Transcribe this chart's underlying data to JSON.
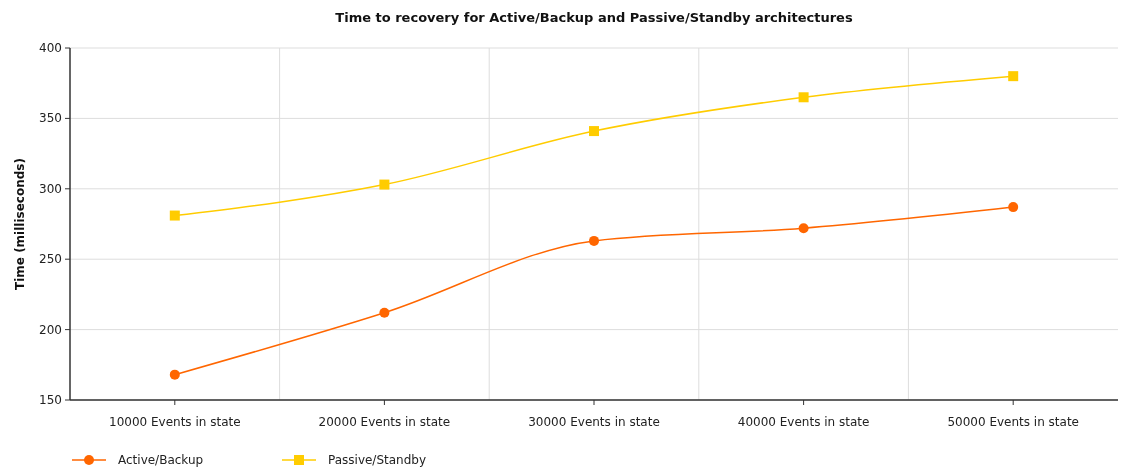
{
  "chart_data": {
    "type": "line",
    "title": "Time to recovery for Active/Backup and Passive/Standby architectures",
    "ylabel": "Time (milliseconds)",
    "categories": [
      "10000 Events in state",
      "20000 Events in state",
      "30000 Events in state",
      "40000 Events in state",
      "50000 Events in state"
    ],
    "series": [
      {
        "name": "Active/Backup",
        "color": "#ff6600",
        "marker": "circle",
        "values": [
          168,
          212,
          263,
          272,
          287
        ]
      },
      {
        "name": "Passive/Standby",
        "color": "#ffcc00",
        "marker": "square",
        "values": [
          281,
          303,
          341,
          365,
          380
        ]
      }
    ],
    "ylim": [
      150,
      400
    ],
    "yticks": [
      150,
      200,
      250,
      300,
      350,
      400
    ],
    "grid": true,
    "legend": "bottom left"
  }
}
